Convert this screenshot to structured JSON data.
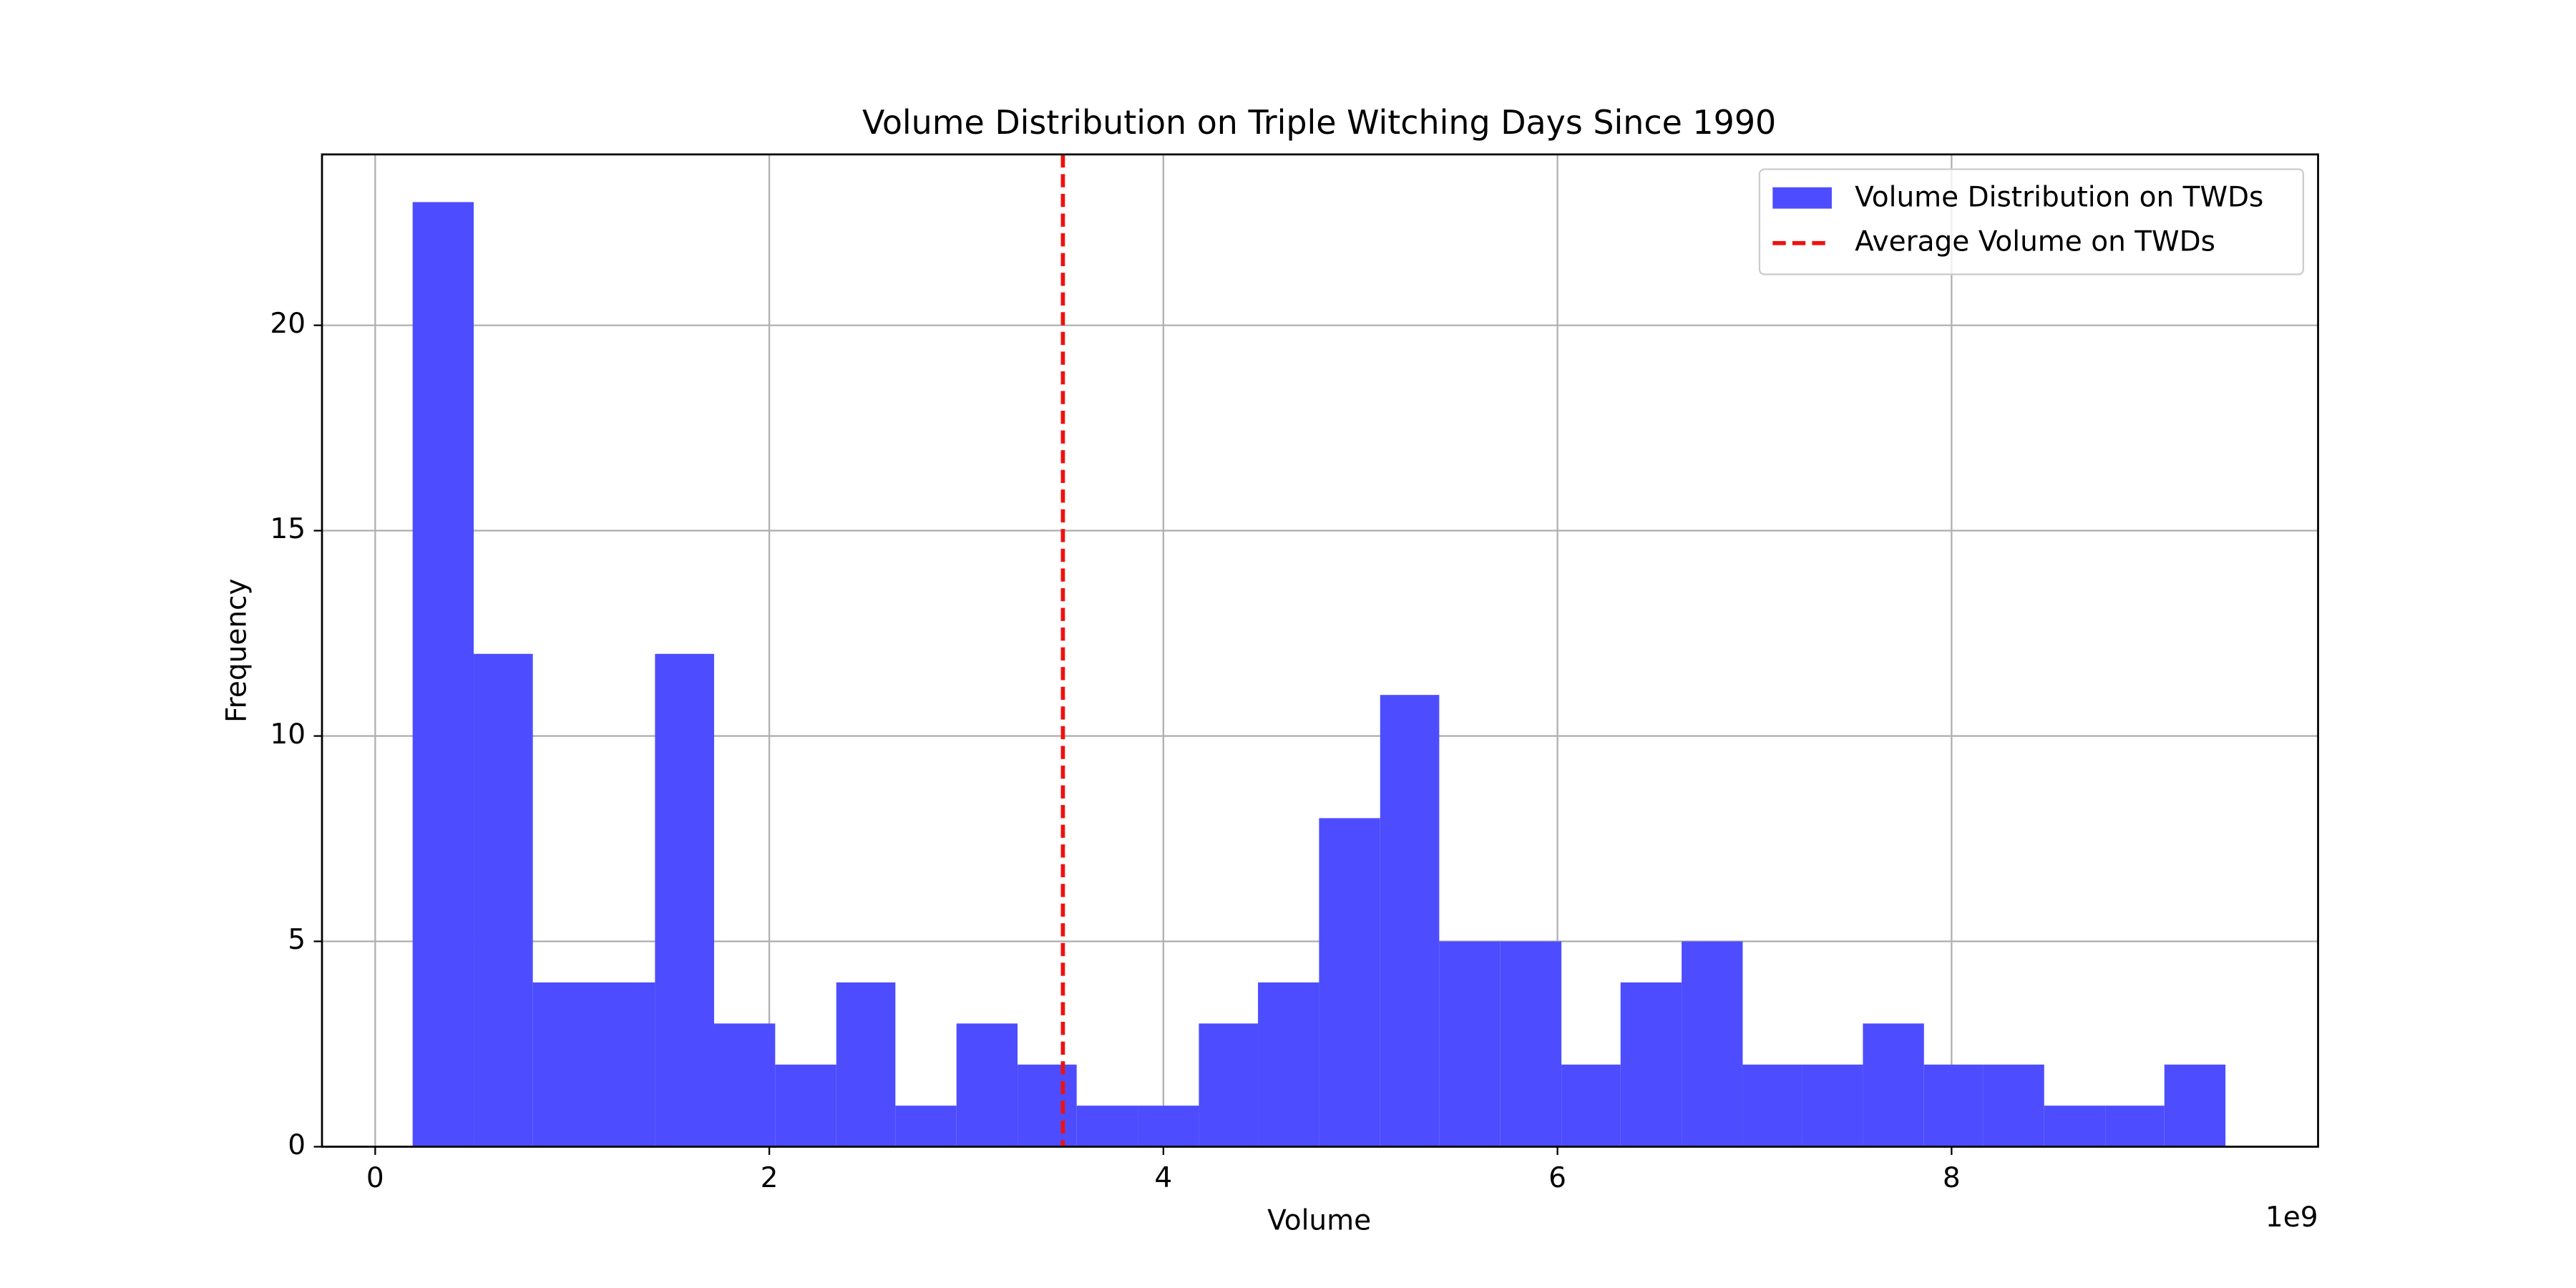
{
  "chart_data": {
    "type": "histogram",
    "title": "Volume Distribution on Triple Witching Days Since 1990",
    "x_label": "Volume",
    "y_label": "Frequency",
    "x_offset_label": "1e9",
    "bins": [
      0.19,
      0.5,
      0.8,
      1.11,
      1.42,
      1.72,
      2.03,
      2.34,
      2.64,
      2.95,
      3.26,
      3.56,
      3.87,
      4.18,
      4.48,
      4.79,
      5.1,
      5.4,
      5.71,
      6.02,
      6.32,
      6.63,
      6.94,
      7.24,
      7.55,
      7.86,
      8.16,
      8.47,
      8.78,
      9.08,
      9.39
    ],
    "series": [
      {
        "name": "Volume Distribution on TWDs",
        "color": "#4d4dff",
        "values": [
          23,
          12,
          4,
          4,
          12,
          3,
          2,
          4,
          1,
          3,
          2,
          1,
          1,
          3,
          4,
          8,
          11,
          5,
          5,
          2,
          4,
          5,
          2,
          2,
          3,
          2,
          2,
          1,
          1,
          2
        ]
      }
    ],
    "vline": {
      "name": "Average Volume on TWDs",
      "value": 3.49,
      "color": "#ee1111"
    },
    "xlim": [
      -0.27,
      9.86
    ],
    "xticks": [
      0,
      2,
      4,
      6,
      8
    ],
    "ylim": [
      0,
      24.16
    ],
    "yticks": [
      0,
      5,
      10,
      15,
      20
    ],
    "grid": true,
    "legend": "upper-right"
  }
}
